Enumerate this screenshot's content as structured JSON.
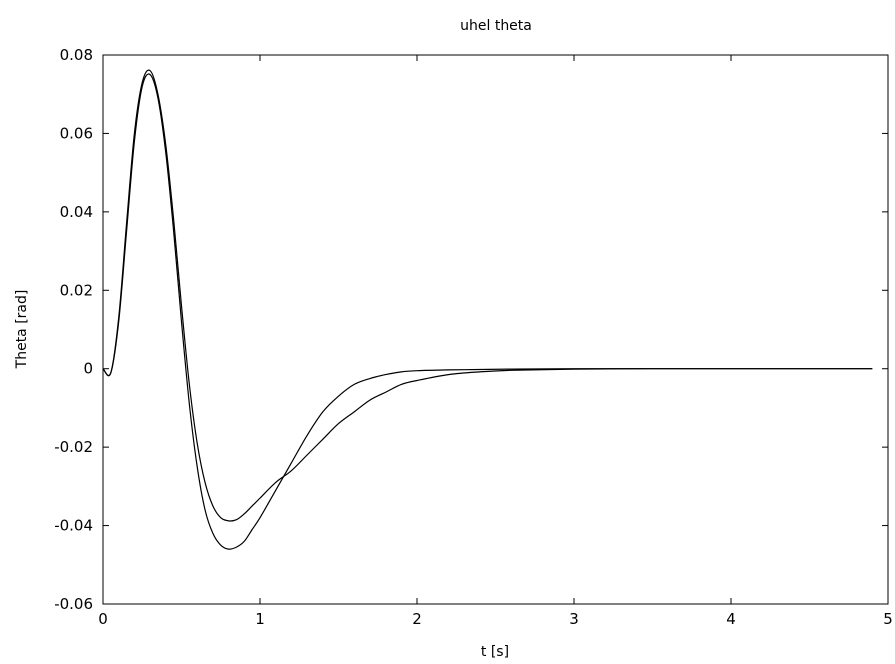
{
  "chart_data": {
    "type": "line",
    "title": "uhel theta",
    "xlabel": "t [s]",
    "ylabel": "Theta [rad]",
    "xlim": [
      0,
      5
    ],
    "ylim": [
      -0.06,
      0.08
    ],
    "grid": false,
    "legend": "none",
    "x_ticks": [
      "0",
      "1",
      "2",
      "3",
      "4",
      "5"
    ],
    "x_tick_values": [
      0,
      1,
      2,
      3,
      4,
      5
    ],
    "y_ticks": [
      "-0.06",
      "-0.04",
      "-0.02",
      "0",
      "0.02",
      "0.04",
      "0.06",
      "0.08"
    ],
    "y_tick_values": [
      -0.06,
      -0.04,
      -0.02,
      0,
      0.02,
      0.04,
      0.06,
      0.08
    ],
    "line_color": "#000000",
    "series": [
      {
        "x": [
          0.0,
          0.05,
          0.1,
          0.15,
          0.2,
          0.25,
          0.3,
          0.35,
          0.4,
          0.45,
          0.5,
          0.55,
          0.6,
          0.65,
          0.7,
          0.75,
          0.8,
          0.85,
          0.9,
          0.95,
          1.0,
          1.1,
          1.2,
          1.3,
          1.4,
          1.5,
          1.6,
          1.7,
          1.8,
          1.9,
          2.0,
          2.2,
          2.4,
          2.6,
          3.0,
          3.5,
          4.0,
          4.5,
          4.9
        ],
        "y": [
          0.0,
          -0.001,
          0.012,
          0.035,
          0.058,
          0.072,
          0.075,
          0.069,
          0.055,
          0.035,
          0.012,
          -0.009,
          -0.025,
          -0.036,
          -0.042,
          -0.045,
          -0.046,
          -0.0455,
          -0.044,
          -0.041,
          -0.038,
          -0.031,
          -0.024,
          -0.017,
          -0.011,
          -0.007,
          -0.004,
          -0.0025,
          -0.0015,
          -0.0008,
          -0.0005,
          -0.0003,
          -0.0002,
          -0.0001,
          0.0,
          0.0,
          0.0,
          0.0,
          0.0
        ]
      },
      {
        "x": [
          0.0,
          0.05,
          0.1,
          0.15,
          0.2,
          0.25,
          0.3,
          0.35,
          0.4,
          0.45,
          0.5,
          0.55,
          0.6,
          0.65,
          0.7,
          0.75,
          0.8,
          0.85,
          0.9,
          0.95,
          1.0,
          1.1,
          1.2,
          1.3,
          1.4,
          1.5,
          1.6,
          1.7,
          1.8,
          1.9,
          2.0,
          2.2,
          2.4,
          2.6,
          3.0,
          3.5,
          4.0,
          4.5,
          4.9
        ],
        "y": [
          0.0,
          -0.001,
          0.013,
          0.037,
          0.06,
          0.073,
          0.076,
          0.07,
          0.057,
          0.038,
          0.016,
          -0.004,
          -0.019,
          -0.029,
          -0.035,
          -0.038,
          -0.0388,
          -0.0385,
          -0.037,
          -0.035,
          -0.033,
          -0.029,
          -0.026,
          -0.022,
          -0.018,
          -0.014,
          -0.011,
          -0.008,
          -0.006,
          -0.004,
          -0.003,
          -0.0015,
          -0.0008,
          -0.0004,
          -0.0001,
          0.0,
          0.0,
          0.0,
          0.0
        ]
      }
    ]
  }
}
